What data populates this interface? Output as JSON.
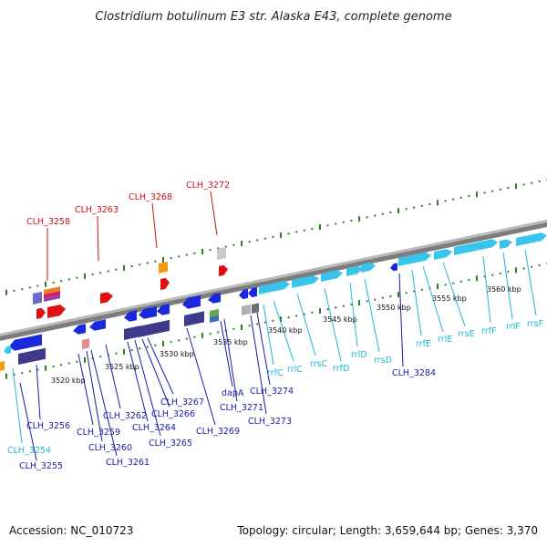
{
  "title": "Clostridium botulinum E3 str. Alaska E43, complete genome",
  "footer": {
    "accession": "Accession: NC_010723",
    "summary": "Topology: circular; Length: 3,659,644 bp; Genes: 3,370"
  },
  "colors": {
    "backbone": "#8a8a8a",
    "tick": "#2e7d1e",
    "label_blue": "#1a1aa6",
    "label_cyan": "#22b5d6",
    "label_red": "#cc1111"
  },
  "scale_labels": [
    "3520 kbp",
    "3525 kbp",
    "3530 kbp",
    "3535 kbp",
    "3540 kbp",
    "3545 kbp",
    "3550 kbp",
    "3555 kbp",
    "3560 kbp"
  ],
  "labels": {
    "red": [
      "CLH_3258",
      "CLH_3263",
      "CLH_3268",
      "CLH_3272"
    ],
    "blue": [
      "CLH_3255",
      "CLH_3256",
      "CLH_3259",
      "CLH_3260",
      "CLH_3261",
      "CLH_3262",
      "CLH_3264",
      "CLH_3265",
      "CLH_3266",
      "CLH_3267",
      "CLH_3269",
      "dapA",
      "CLH_3271",
      "CLH_3273",
      "CLH_3274",
      "CLH_3284"
    ],
    "cyan": [
      "CLH_3254",
      "rrfC",
      "rrlC",
      "rrsC",
      "rrfD",
      "rrlD",
      "rrsD",
      "rrfE",
      "rrlE",
      "rrsE",
      "rrfF",
      "rrlF",
      "rrsF"
    ]
  }
}
